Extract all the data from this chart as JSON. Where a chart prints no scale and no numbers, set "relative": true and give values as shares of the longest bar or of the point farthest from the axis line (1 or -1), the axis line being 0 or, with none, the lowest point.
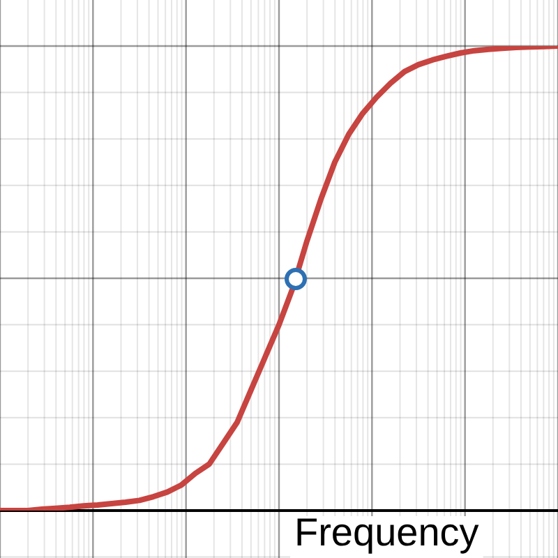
{
  "chart_data": {
    "type": "line",
    "xlabel": "Frequency",
    "relative": true,
    "grid": true,
    "categories": [
      null,
      null,
      null,
      null,
      null,
      null,
      null,
      null,
      null,
      null,
      null,
      null,
      null,
      null,
      null,
      null,
      null,
      null,
      null,
      null,
      null,
      null,
      null,
      null,
      null,
      null,
      null,
      null,
      null,
      null,
      null,
      null,
      null,
      null,
      null,
      null,
      null,
      null,
      null,
      null,
      null
    ],
    "series": [
      {
        "type": "line",
        "color": "#c74440",
        "marker": "none",
        "values": [
          0,
          0,
          0,
          0.003,
          0.005,
          0.007,
          0.01,
          0.012,
          0.015,
          0.018,
          0.022,
          0.03,
          0.04,
          0.055,
          0.08,
          0.1,
          0.145,
          0.19,
          0.26,
          0.33,
          0.4,
          0.48,
          0.58,
          0.67,
          0.75,
          0.81,
          0.855,
          0.89,
          0.92,
          0.945,
          0.96,
          0.97,
          0.978,
          0.985,
          0.99,
          0.993,
          0.995,
          0.997,
          0.998,
          0.999,
          1
        ]
      }
    ]
  }
}
